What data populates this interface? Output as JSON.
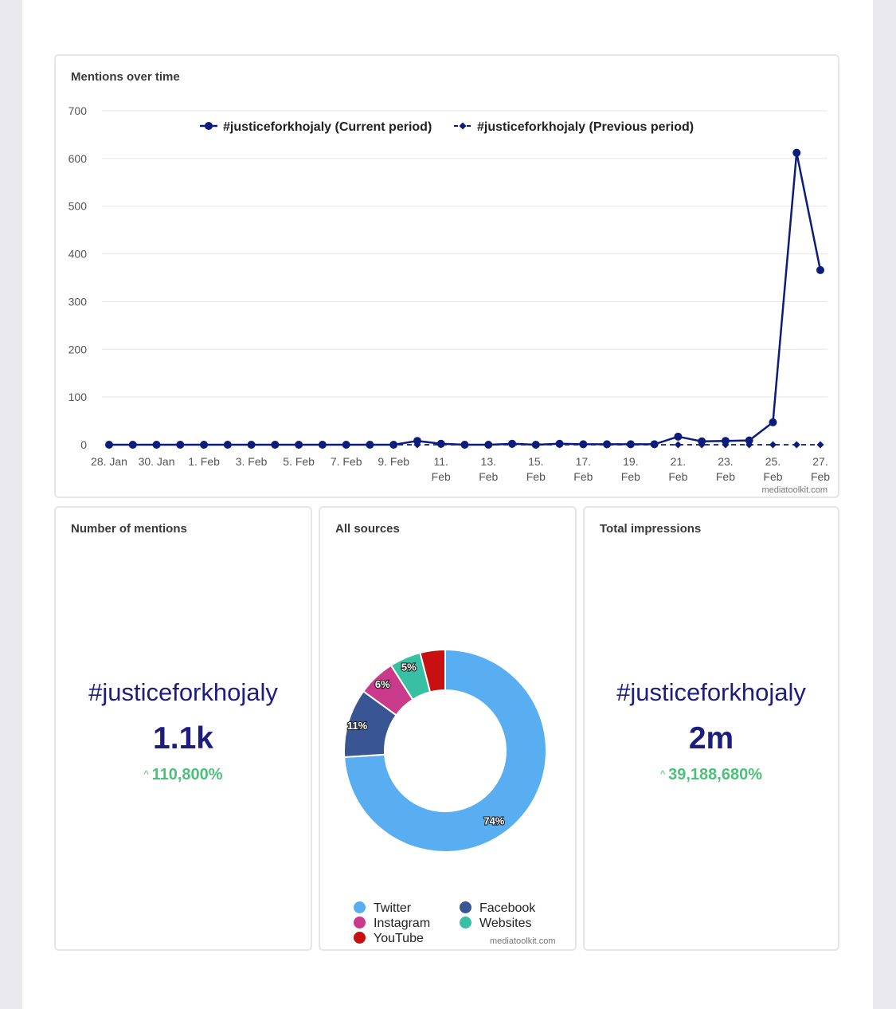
{
  "line_card": {
    "title": "Mentions over time",
    "credit": "mediatoolkit.com"
  },
  "mentions_card": {
    "title": "Number of mentions",
    "tag": "#justiceforkhojaly",
    "value": "1.1k",
    "change": "110,800%"
  },
  "sources_card": {
    "title": "All sources",
    "credit": "mediatoolkit.com"
  },
  "impressions_card": {
    "title": "Total impressions",
    "tag": "#justiceforkhojaly",
    "value": "2m",
    "change": "39,188,680%"
  },
  "colors": {
    "series": "#0c1c7c",
    "positive": "#4cc17a",
    "twitter": "#58aef0",
    "facebook": "#3a5594",
    "instagram": "#c93a8a",
    "websites": "#39bfa3",
    "youtube": "#c81010"
  },
  "chart_data": [
    {
      "type": "line",
      "title": "Mentions over time",
      "ylim": [
        0,
        700
      ],
      "yticks": [
        0,
        100,
        200,
        300,
        400,
        500,
        600,
        700
      ],
      "grid": true,
      "legend_position": "top-center",
      "x_tick_labels": [
        [
          "28. Jan"
        ],
        [
          "30. Jan"
        ],
        [
          "1. Feb"
        ],
        [
          "3. Feb"
        ],
        [
          "5. Feb"
        ],
        [
          "7. Feb"
        ],
        [
          "9. Feb"
        ],
        [
          "11.",
          "Feb"
        ],
        [
          "13.",
          "Feb"
        ],
        [
          "15.",
          "Feb"
        ],
        [
          "17.",
          "Feb"
        ],
        [
          "19.",
          "Feb"
        ],
        [
          "21.",
          "Feb"
        ],
        [
          "23.",
          "Feb"
        ],
        [
          "25.",
          "Feb"
        ],
        [
          "27.",
          "Feb"
        ]
      ],
      "x": [
        "28 Jan",
        "29 Jan",
        "30 Jan",
        "31 Jan",
        "1 Feb",
        "2 Feb",
        "3 Feb",
        "4 Feb",
        "5 Feb",
        "6 Feb",
        "7 Feb",
        "8 Feb",
        "9 Feb",
        "10 Feb",
        "11 Feb",
        "12 Feb",
        "13 Feb",
        "14 Feb",
        "15 Feb",
        "16 Feb",
        "17 Feb",
        "18 Feb",
        "19 Feb",
        "20 Feb",
        "21 Feb",
        "22 Feb",
        "23 Feb",
        "24 Feb",
        "25 Feb",
        "26 Feb",
        "27 Feb"
      ],
      "series": [
        {
          "name": "#justiceforkhojaly (Current period)",
          "style": "solid-circle",
          "values": [
            0,
            0,
            0,
            0,
            0,
            0,
            0,
            0,
            0,
            0,
            0,
            0,
            0,
            8,
            2,
            0,
            0,
            2,
            0,
            2,
            1,
            1,
            1,
            1,
            17,
            7,
            8,
            9,
            47,
            612,
            366
          ]
        },
        {
          "name": "#justiceforkhojaly (Previous period)",
          "style": "dashed-diamond",
          "values": [
            0,
            0,
            0,
            0,
            0,
            0,
            0,
            0,
            0,
            0,
            0,
            0,
            0,
            0,
            0,
            0,
            0,
            0,
            0,
            0,
            0,
            0,
            0,
            0,
            0,
            0,
            0,
            0,
            0,
            0,
            0
          ]
        }
      ]
    },
    {
      "type": "pie",
      "title": "All sources",
      "style": "donut",
      "slices": [
        {
          "name": "Twitter",
          "value": 74,
          "label": "74%",
          "color": "#58aef0"
        },
        {
          "name": "Facebook",
          "value": 11,
          "label": "11%",
          "color": "#3a5594"
        },
        {
          "name": "Instagram",
          "value": 6,
          "label": "6%",
          "color": "#c93a8a"
        },
        {
          "name": "Websites",
          "value": 5,
          "label": "5%",
          "color": "#39bfa3"
        },
        {
          "name": "YouTube",
          "value": 4,
          "label": "",
          "color": "#c81010"
        }
      ],
      "legend_order": [
        "Twitter",
        "Facebook",
        "Instagram",
        "Websites",
        "YouTube"
      ],
      "legend_position": "bottom"
    }
  ]
}
